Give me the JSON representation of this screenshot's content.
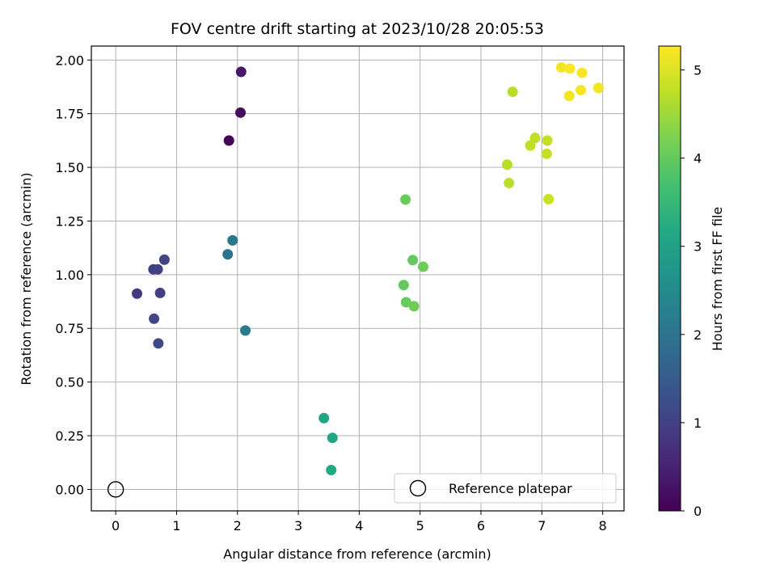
{
  "chart_data": {
    "type": "scatter",
    "title": "FOV centre drift starting at 2023/10/28 20:05:53",
    "xlabel": "Angular distance from reference (arcmin)",
    "ylabel": "Rotation from reference (arcmin)",
    "xlim": [
      -0.4,
      8.35
    ],
    "ylim": [
      -0.1,
      2.065
    ],
    "xticks": [
      0,
      1,
      2,
      3,
      4,
      5,
      6,
      7,
      8
    ],
    "xtick_labels": [
      "0",
      "1",
      "2",
      "3",
      "4",
      "5",
      "6",
      "7",
      "8"
    ],
    "yticks": [
      0.0,
      0.25,
      0.5,
      0.75,
      1.0,
      1.25,
      1.5,
      1.75,
      2.0
    ],
    "ytick_labels": [
      "0.00",
      "0.25",
      "0.50",
      "0.75",
      "1.00",
      "1.25",
      "1.50",
      "1.75",
      "2.00"
    ],
    "grid": true,
    "colormap": "viridis",
    "colorbar": {
      "label": "Hours from first FF file",
      "range": [
        0,
        5.27
      ],
      "ticks": [
        0,
        1,
        2,
        3,
        4,
        5
      ],
      "tick_labels": [
        "0",
        "1",
        "2",
        "3",
        "4",
        "5"
      ]
    },
    "legend": {
      "position": "lower-right",
      "entries": [
        {
          "label": "Reference platepar",
          "marker": "open-circle"
        }
      ]
    },
    "reference_point": {
      "x": 0,
      "y": 0,
      "label": "Reference platepar"
    },
    "points": [
      {
        "x": 2.06,
        "y": 1.945,
        "hours": 0.35
      },
      {
        "x": 2.05,
        "y": 1.755,
        "hours": 0.2
      },
      {
        "x": 1.86,
        "y": 1.625,
        "hours": 0.05
      },
      {
        "x": 0.8,
        "y": 1.07,
        "hours": 1.05
      },
      {
        "x": 0.62,
        "y": 1.025,
        "hours": 0.95
      },
      {
        "x": 0.69,
        "y": 1.025,
        "hours": 1.0
      },
      {
        "x": 0.35,
        "y": 0.912,
        "hours": 0.9
      },
      {
        "x": 0.73,
        "y": 0.915,
        "hours": 1.0
      },
      {
        "x": 0.63,
        "y": 0.795,
        "hours": 1.1
      },
      {
        "x": 0.7,
        "y": 0.68,
        "hours": 1.15
      },
      {
        "x": 1.92,
        "y": 1.16,
        "hours": 2.1
      },
      {
        "x": 1.84,
        "y": 1.095,
        "hours": 2.0
      },
      {
        "x": 2.13,
        "y": 0.74,
        "hours": 2.2
      },
      {
        "x": 3.42,
        "y": 0.332,
        "hours": 3.1
      },
      {
        "x": 3.56,
        "y": 0.24,
        "hours": 3.1
      },
      {
        "x": 3.54,
        "y": 0.09,
        "hours": 3.2
      },
      {
        "x": 4.76,
        "y": 1.35,
        "hours": 4.05
      },
      {
        "x": 4.88,
        "y": 1.068,
        "hours": 4.0
      },
      {
        "x": 5.05,
        "y": 1.037,
        "hours": 4.1
      },
      {
        "x": 4.73,
        "y": 0.952,
        "hours": 4.0
      },
      {
        "x": 4.77,
        "y": 0.872,
        "hours": 4.05
      },
      {
        "x": 4.9,
        "y": 0.853,
        "hours": 4.1
      },
      {
        "x": 6.52,
        "y": 1.852,
        "hours": 4.7
      },
      {
        "x": 6.89,
        "y": 1.637,
        "hours": 4.75
      },
      {
        "x": 7.09,
        "y": 1.625,
        "hours": 4.8
      },
      {
        "x": 6.81,
        "y": 1.602,
        "hours": 4.75
      },
      {
        "x": 7.08,
        "y": 1.563,
        "hours": 4.8
      },
      {
        "x": 6.43,
        "y": 1.513,
        "hours": 4.7
      },
      {
        "x": 6.46,
        "y": 1.427,
        "hours": 4.7
      },
      {
        "x": 7.11,
        "y": 1.352,
        "hours": 4.85
      },
      {
        "x": 7.32,
        "y": 1.965,
        "hours": 5.2
      },
      {
        "x": 7.46,
        "y": 1.96,
        "hours": 5.25
      },
      {
        "x": 7.66,
        "y": 1.94,
        "hours": 5.22
      },
      {
        "x": 7.93,
        "y": 1.87,
        "hours": 5.15
      },
      {
        "x": 7.64,
        "y": 1.86,
        "hours": 5.2
      },
      {
        "x": 7.45,
        "y": 1.833,
        "hours": 5.18
      }
    ]
  }
}
